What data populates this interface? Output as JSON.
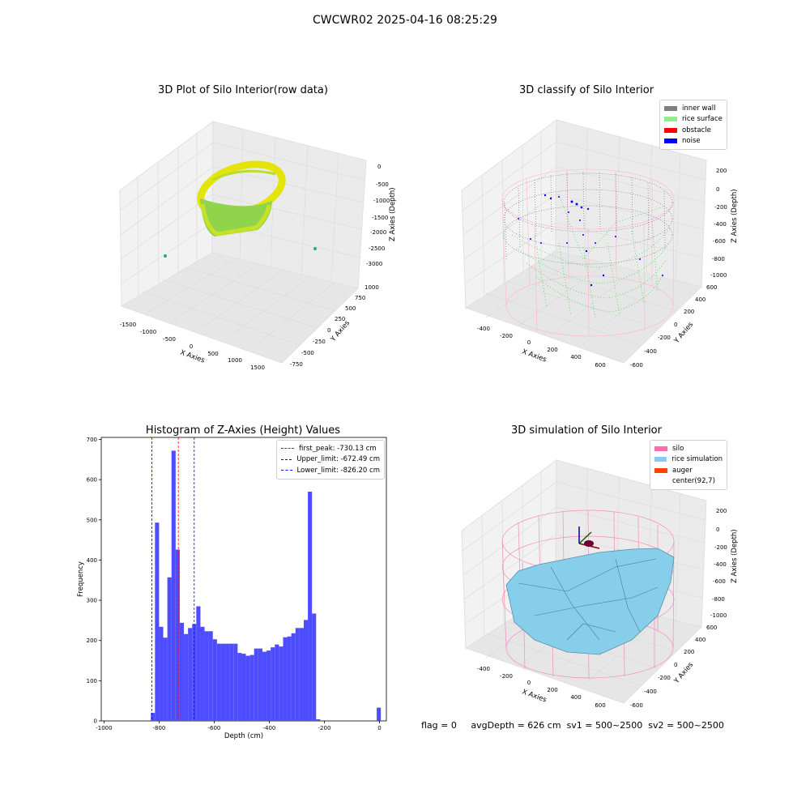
{
  "suptitle": "CWCWR02 2025-04-16 08:25:29",
  "footer": {
    "flag": "flag = 0",
    "avg_depth": "avgDepth = 626 cm",
    "sv1": "sv1 = 500~2500",
    "sv2": "sv2 = 500~2500"
  },
  "panels": {
    "raw": {
      "title": "3D Plot of Silo Interior(row data)",
      "xlabel": "X Axies",
      "ylabel": "Y Axies",
      "zlabel": "Z Axies (Depth)",
      "xticks": [
        "-1500",
        "-1000",
        "-500",
        "0",
        "500",
        "1000",
        "1500"
      ],
      "yticks": [
        "-750",
        "-500",
        "-250",
        "0",
        "250",
        "500",
        "750",
        "1000"
      ],
      "zticks": [
        "0",
        "-500",
        "-1000",
        "-1500",
        "-2000",
        "-2500",
        "-3000"
      ]
    },
    "classify": {
      "title": "3D classify of Silo Interior",
      "xlabel": "X Axies",
      "ylabel": "Y Axies",
      "zlabel": "Z Axies (Depth)",
      "xticks": [
        "-400",
        "-200",
        "0",
        "200",
        "400",
        "600"
      ],
      "yticks": [
        "-600",
        "-400",
        "-200",
        "0",
        "200",
        "400",
        "600"
      ],
      "zticks": [
        "200",
        "0",
        "-200",
        "-400",
        "-600",
        "-800",
        "-1000"
      ],
      "legend": [
        {
          "label": "inner wall",
          "color": "#808080"
        },
        {
          "label": "rice surface",
          "color": "#90ee90"
        },
        {
          "label": "obstacle",
          "color": "#ff0000"
        },
        {
          "label": "noise",
          "color": "#0000ff"
        }
      ]
    },
    "simulation": {
      "title": "3D simulation of Silo Interior",
      "xlabel": "X Axies",
      "ylabel": "Y Axies",
      "zlabel": "Z Axies (Depth)",
      "xticks": [
        "-400",
        "-200",
        "0",
        "200",
        "400",
        "600"
      ],
      "yticks": [
        "-600",
        "-400",
        "-200",
        "0",
        "200",
        "400",
        "600"
      ],
      "zticks": [
        "200",
        "0",
        "-200",
        "-400",
        "-600",
        "-800",
        "-1000"
      ],
      "legend": [
        {
          "label": "silo",
          "color": "#ff69b4"
        },
        {
          "label": "rice simulation",
          "color": "#87ceeb"
        },
        {
          "label": "auger",
          "color": "#ff4500"
        },
        {
          "label": "center(92,7)",
          "color": ""
        }
      ]
    }
  },
  "chart_data": {
    "type": "bar",
    "title": "Histogram of Z-Axies (Height) Values",
    "xlabel": "Depth (cm)",
    "ylabel": "Frequency",
    "xlim": [
      -1010,
      25
    ],
    "ylim": [
      0,
      705
    ],
    "xticks": [
      -1000,
      -800,
      -600,
      -400,
      -200,
      0
    ],
    "yticks": [
      0,
      100,
      200,
      300,
      400,
      500,
      600,
      700
    ],
    "bins": [
      {
        "x0": -830,
        "x1": -815,
        "value": 20
      },
      {
        "x0": -815,
        "x1": -800,
        "value": 493
      },
      {
        "x0": -800,
        "x1": -785,
        "value": 234
      },
      {
        "x0": -785,
        "x1": -770,
        "value": 207
      },
      {
        "x0": -770,
        "x1": -755,
        "value": 357
      },
      {
        "x0": -755,
        "x1": -740,
        "value": 672
      },
      {
        "x0": -740,
        "x1": -725,
        "value": 426
      },
      {
        "x0": -725,
        "x1": -710,
        "value": 244
      },
      {
        "x0": -710,
        "x1": -695,
        "value": 216
      },
      {
        "x0": -695,
        "x1": -680,
        "value": 231
      },
      {
        "x0": -680,
        "x1": -665,
        "value": 241
      },
      {
        "x0": -665,
        "x1": -650,
        "value": 285
      },
      {
        "x0": -650,
        "x1": -635,
        "value": 234
      },
      {
        "x0": -635,
        "x1": -620,
        "value": 223
      },
      {
        "x0": -620,
        "x1": -605,
        "value": 223
      },
      {
        "x0": -605,
        "x1": -590,
        "value": 203
      },
      {
        "x0": -590,
        "x1": -575,
        "value": 192
      },
      {
        "x0": -575,
        "x1": -560,
        "value": 192
      },
      {
        "x0": -560,
        "x1": -545,
        "value": 192
      },
      {
        "x0": -545,
        "x1": -530,
        "value": 192
      },
      {
        "x0": -530,
        "x1": -515,
        "value": 192
      },
      {
        "x0": -515,
        "x1": -500,
        "value": 169
      },
      {
        "x0": -500,
        "x1": -485,
        "value": 167
      },
      {
        "x0": -485,
        "x1": -470,
        "value": 162
      },
      {
        "x0": -470,
        "x1": -455,
        "value": 164
      },
      {
        "x0": -455,
        "x1": -440,
        "value": 180
      },
      {
        "x0": -440,
        "x1": -425,
        "value": 180
      },
      {
        "x0": -425,
        "x1": -410,
        "value": 172
      },
      {
        "x0": -410,
        "x1": -395,
        "value": 175
      },
      {
        "x0": -395,
        "x1": -380,
        "value": 183
      },
      {
        "x0": -380,
        "x1": -365,
        "value": 190
      },
      {
        "x0": -365,
        "x1": -350,
        "value": 185
      },
      {
        "x0": -350,
        "x1": -335,
        "value": 208
      },
      {
        "x0": -335,
        "x1": -320,
        "value": 210
      },
      {
        "x0": -320,
        "x1": -305,
        "value": 218
      },
      {
        "x0": -305,
        "x1": -290,
        "value": 231
      },
      {
        "x0": -290,
        "x1": -275,
        "value": 231
      },
      {
        "x0": -275,
        "x1": -260,
        "value": 251
      },
      {
        "x0": -260,
        "x1": -245,
        "value": 570
      },
      {
        "x0": -245,
        "x1": -230,
        "value": 267
      },
      {
        "x0": -230,
        "x1": -215,
        "value": 4
      },
      {
        "x0": -10,
        "x1": 5,
        "value": 33
      }
    ],
    "vlines": [
      {
        "label": "first_peak: -730.13 cm",
        "x": -730.13,
        "color": "#ff0000"
      },
      {
        "label": "Upper_limit: -672.49 cm",
        "x": -672.49,
        "color": "#0000ff"
      },
      {
        "label": "Lower_limit: -826.20 cm",
        "x": -826.2,
        "color": "#0000ff"
      }
    ],
    "bar_color": "#4d4dff"
  }
}
